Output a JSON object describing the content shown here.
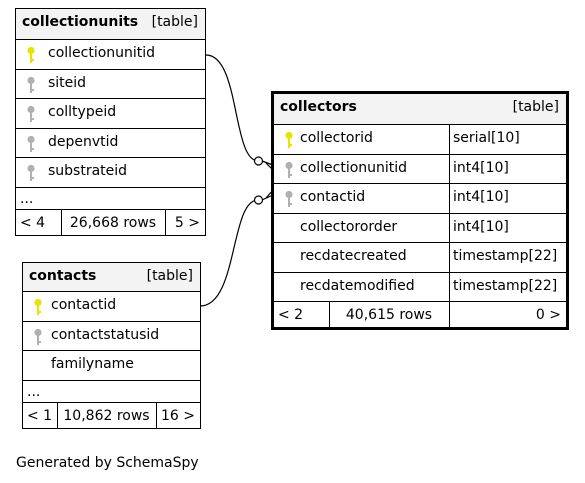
{
  "colors": {
    "primary_key": "#e5e500",
    "foreign_key": "#b0b0b0",
    "header_bg": "#f3f3f3",
    "border": "#000000"
  },
  "tables": {
    "collectionunits": {
      "name": "collectionunits",
      "type": "[table]",
      "columns": [
        {
          "name": "collectionunitid",
          "key": "primary-key"
        },
        {
          "name": "siteid",
          "key": "foreign-key"
        },
        {
          "name": "colltypeid",
          "key": "foreign-key"
        },
        {
          "name": "depenvtid",
          "key": "foreign-key"
        },
        {
          "name": "substrateid",
          "key": "foreign-key"
        }
      ],
      "ellipsis": "...",
      "footer": {
        "parents": "< 4",
        "rows": "26,668 rows",
        "children": "5 >"
      }
    },
    "contacts": {
      "name": "contacts",
      "type": "[table]",
      "columns": [
        {
          "name": "contactid",
          "key": "primary-key"
        },
        {
          "name": "contactstatusid",
          "key": "foreign-key"
        },
        {
          "name": "familyname",
          "key": "none"
        }
      ],
      "ellipsis": "...",
      "footer": {
        "parents": "< 1",
        "rows": "10,862 rows",
        "children": "16 >"
      }
    },
    "collectors": {
      "name": "collectors",
      "type": "[table]",
      "columns": [
        {
          "name": "collectorid",
          "datatype": "serial[10]",
          "key": "primary-key"
        },
        {
          "name": "collectionunitid",
          "datatype": "int4[10]",
          "key": "foreign-key"
        },
        {
          "name": "contactid",
          "datatype": "int4[10]",
          "key": "foreign-key"
        },
        {
          "name": "collectororder",
          "datatype": "int4[10]",
          "key": "none"
        },
        {
          "name": "recdatecreated",
          "datatype": "timestamp[22]",
          "key": "none"
        },
        {
          "name": "recdatemodified",
          "datatype": "timestamp[22]",
          "key": "none"
        }
      ],
      "footer": {
        "parents": "< 2",
        "rows": "40,615 rows",
        "children": "0 >"
      }
    }
  },
  "footer_text": "Generated by SchemaSpy"
}
